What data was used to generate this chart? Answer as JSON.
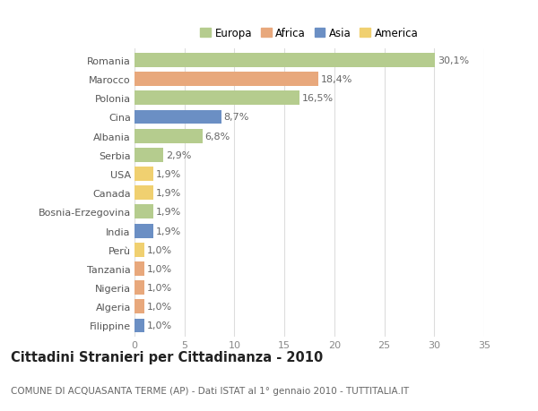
{
  "countries": [
    "Romania",
    "Marocco",
    "Polonia",
    "Cina",
    "Albania",
    "Serbia",
    "USA",
    "Canada",
    "Bosnia-Erzegovina",
    "India",
    "Perù",
    "Tanzania",
    "Nigeria",
    "Algeria",
    "Filippine"
  ],
  "values": [
    30.1,
    18.4,
    16.5,
    8.7,
    6.8,
    2.9,
    1.9,
    1.9,
    1.9,
    1.9,
    1.0,
    1.0,
    1.0,
    1.0,
    1.0
  ],
  "labels": [
    "30,1%",
    "18,4%",
    "16,5%",
    "8,7%",
    "6,8%",
    "2,9%",
    "1,9%",
    "1,9%",
    "1,9%",
    "1,9%",
    "1,0%",
    "1,0%",
    "1,0%",
    "1,0%",
    "1,0%"
  ],
  "colors": [
    "#b5cc8e",
    "#e8a87c",
    "#b5cc8e",
    "#6b8fc4",
    "#b5cc8e",
    "#b5cc8e",
    "#f0d070",
    "#f0d070",
    "#b5cc8e",
    "#6b8fc4",
    "#f0d070",
    "#e8a87c",
    "#e8a87c",
    "#e8a87c",
    "#6b8fc4"
  ],
  "legend_labels": [
    "Europa",
    "Africa",
    "Asia",
    "America"
  ],
  "legend_colors": [
    "#b5cc8e",
    "#e8a87c",
    "#6b8fc4",
    "#f0d070"
  ],
  "xlim": [
    0,
    35
  ],
  "xticks": [
    0,
    5,
    10,
    15,
    20,
    25,
    30,
    35
  ],
  "title": "Cittadini Stranieri per Cittadinanza - 2010",
  "subtitle": "COMUNE DI ACQUASANTA TERME (AP) - Dati ISTAT al 1° gennaio 2010 - TUTTITALIA.IT",
  "background_color": "#ffffff",
  "grid_color": "#dddddd",
  "bar_height": 0.75,
  "label_fontsize": 8,
  "ytick_fontsize": 8,
  "xtick_fontsize": 8,
  "title_fontsize": 10.5,
  "subtitle_fontsize": 7.5
}
